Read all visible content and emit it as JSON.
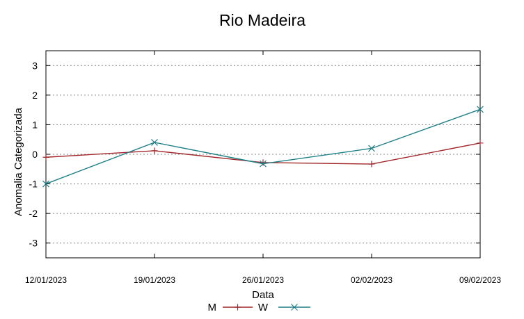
{
  "chart_data": {
    "type": "line",
    "title": "Rio Madeira",
    "xlabel": "Data",
    "ylabel": "Anomalia Categorizada",
    "categories": [
      "12/01/2023",
      "19/01/2023",
      "26/01/2023",
      "02/02/2023",
      "09/02/2023"
    ],
    "ylim": [
      -3.5,
      3.5
    ],
    "yticks": [
      -3,
      -2,
      -1,
      0,
      1,
      2,
      3
    ],
    "grid": true,
    "legend_position": "bottom-center",
    "series": [
      {
        "name": "M",
        "color": "#a0262a",
        "marker": "plus",
        "values": [
          -0.1,
          0.12,
          -0.28,
          -0.33,
          0.38
        ]
      },
      {
        "name": "W",
        "color": "#1f7f86",
        "marker": "cross",
        "values": [
          -1.0,
          0.4,
          -0.32,
          0.2,
          1.52
        ]
      }
    ]
  }
}
